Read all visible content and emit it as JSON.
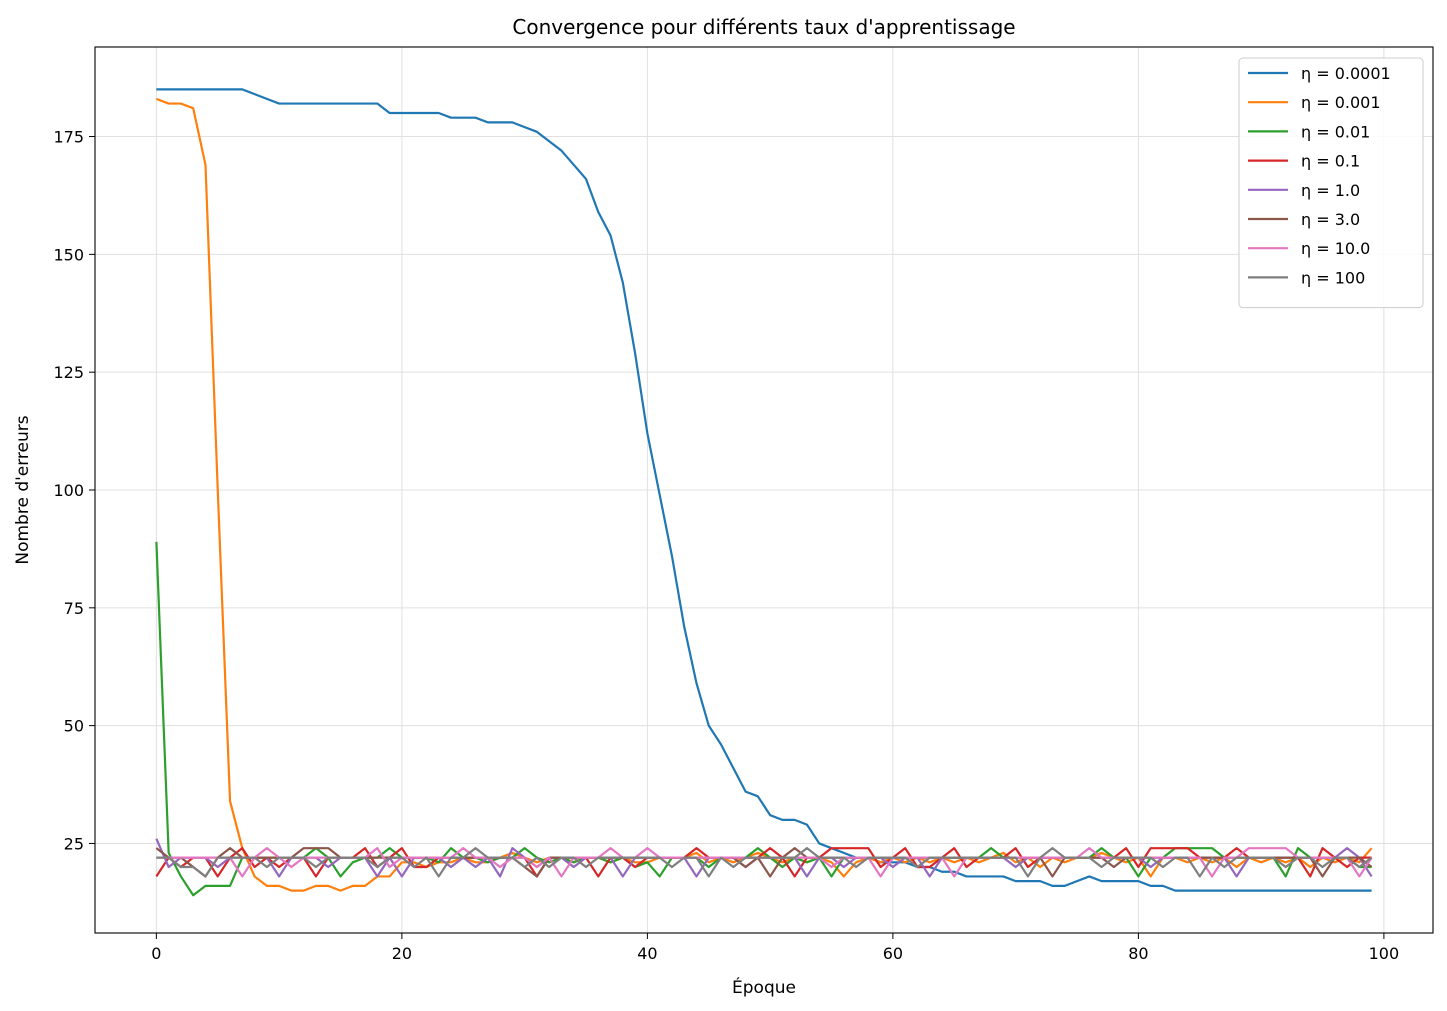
{
  "chart_data": {
    "type": "line",
    "title": "Convergence pour différents taux d'apprentissage",
    "xlabel": "Époque",
    "ylabel": "Nombre d'erreurs",
    "xlim": [
      -5,
      104
    ],
    "ylim": [
      6,
      194
    ],
    "xticks": [
      0,
      20,
      40,
      60,
      80,
      100
    ],
    "yticks": [
      25,
      50,
      75,
      100,
      125,
      150,
      175
    ],
    "grid": true,
    "legend_position": "top-right",
    "series": [
      {
        "name": "η = 0.0001",
        "color": "#1f77b4",
        "values": [
          185,
          185,
          185,
          185,
          185,
          185,
          185,
          185,
          184,
          183,
          182,
          182,
          182,
          182,
          182,
          182,
          182,
          182,
          182,
          180,
          180,
          180,
          180,
          180,
          179,
          179,
          179,
          178,
          178,
          178,
          177,
          176,
          174,
          172,
          169,
          166,
          159,
          154,
          144,
          129,
          112,
          99,
          86,
          71,
          59,
          50,
          46,
          41,
          36,
          35,
          31,
          30,
          30,
          29,
          25,
          24,
          23,
          22,
          22,
          21,
          21,
          21,
          20,
          20,
          19,
          19,
          18,
          18,
          18,
          18,
          17,
          17,
          17,
          16,
          16,
          17,
          18,
          17,
          17,
          17,
          17,
          16,
          16,
          15,
          15,
          15,
          15,
          15,
          15,
          15,
          15,
          15,
          15,
          15,
          15,
          15,
          15,
          15,
          15,
          15
        ]
      },
      {
        "name": "η = 0.001",
        "color": "#ff7f0e",
        "values": [
          183,
          182,
          182,
          181,
          169,
          100,
          34,
          24,
          18,
          16,
          16,
          15,
          15,
          16,
          16,
          15,
          16,
          16,
          18,
          18,
          21,
          21,
          20,
          21,
          21,
          22,
          21,
          21,
          22,
          23,
          22,
          21,
          22,
          22,
          21,
          22,
          22,
          21,
          22,
          21,
          21,
          22,
          22,
          22,
          23,
          21,
          22,
          21,
          22,
          23,
          22,
          21,
          22,
          21,
          22,
          21,
          18,
          21,
          22,
          21,
          22,
          21,
          22,
          21,
          22,
          21,
          22,
          21,
          22,
          23,
          21,
          22,
          20,
          22,
          21,
          22,
          22,
          23,
          22,
          21,
          22,
          18,
          22,
          22,
          21,
          22,
          21,
          22,
          20,
          22,
          21,
          22,
          21,
          22,
          20,
          22,
          21,
          22,
          21,
          24
        ]
      },
      {
        "name": "η = 0.01",
        "color": "#2ca02c",
        "values": [
          89,
          23,
          18,
          14,
          16,
          16,
          16,
          22,
          22,
          22,
          22,
          22,
          22,
          24,
          22,
          18,
          21,
          22,
          22,
          24,
          22,
          22,
          22,
          21,
          24,
          22,
          22,
          21,
          22,
          22,
          24,
          22,
          21,
          22,
          21,
          22,
          22,
          21,
          22,
          20,
          21,
          18,
          22,
          22,
          22,
          20,
          22,
          22,
          22,
          24,
          22,
          20,
          22,
          21,
          22,
          18,
          22,
          22,
          22,
          22,
          22,
          22,
          22,
          22,
          22,
          22,
          22,
          22,
          24,
          22,
          22,
          22,
          22,
          22,
          22,
          22,
          22,
          24,
          22,
          22,
          18,
          22,
          22,
          24,
          24,
          24,
          24,
          22,
          22,
          22,
          22,
          22,
          18,
          24,
          22,
          22,
          22,
          22,
          20,
          20
        ]
      },
      {
        "name": "η = 0.1",
        "color": "#d62728",
        "values": [
          18,
          22,
          20,
          22,
          22,
          18,
          22,
          24,
          20,
          22,
          20,
          22,
          22,
          18,
          22,
          22,
          22,
          24,
          20,
          22,
          24,
          20,
          20,
          22,
          22,
          22,
          22,
          22,
          22,
          22,
          22,
          18,
          22,
          22,
          22,
          22,
          18,
          22,
          22,
          20,
          22,
          22,
          22,
          22,
          24,
          22,
          22,
          22,
          22,
          22,
          24,
          22,
          18,
          22,
          22,
          24,
          24,
          24,
          24,
          20,
          22,
          24,
          20,
          20,
          22,
          24,
          20,
          22,
          22,
          22,
          24,
          20,
          22,
          22,
          22,
          22,
          22,
          22,
          22,
          24,
          20,
          24,
          24,
          24,
          24,
          22,
          22,
          22,
          24,
          22,
          22,
          22,
          22,
          22,
          18,
          24,
          22,
          20,
          22,
          22
        ]
      },
      {
        "name": "η = 1.0",
        "color": "#9467bd",
        "values": [
          26,
          20,
          22,
          22,
          22,
          20,
          22,
          22,
          22,
          22,
          18,
          22,
          22,
          22,
          20,
          22,
          22,
          22,
          18,
          22,
          18,
          22,
          22,
          22,
          20,
          22,
          20,
          22,
          18,
          24,
          22,
          20,
          22,
          22,
          20,
          22,
          22,
          22,
          18,
          22,
          22,
          22,
          22,
          22,
          18,
          22,
          22,
          22,
          20,
          22,
          22,
          22,
          22,
          18,
          22,
          22,
          20,
          22,
          22,
          22,
          20,
          22,
          22,
          18,
          22,
          22,
          22,
          22,
          22,
          22,
          20,
          22,
          22,
          22,
          22,
          22,
          22,
          22,
          22,
          22,
          22,
          20,
          22,
          22,
          22,
          22,
          22,
          22,
          18,
          22,
          22,
          22,
          22,
          22,
          22,
          22,
          22,
          24,
          22,
          18
        ]
      },
      {
        "name": "η = 3.0",
        "color": "#8c564b",
        "values": [
          24,
          22,
          22,
          20,
          18,
          22,
          24,
          22,
          22,
          22,
          22,
          22,
          24,
          24,
          24,
          22,
          22,
          22,
          22,
          22,
          22,
          22,
          22,
          22,
          22,
          22,
          22,
          22,
          22,
          22,
          20,
          18,
          22,
          22,
          22,
          22,
          22,
          22,
          22,
          22,
          22,
          22,
          22,
          22,
          22,
          22,
          22,
          22,
          20,
          22,
          18,
          22,
          24,
          22,
          22,
          22,
          22,
          22,
          22,
          22,
          22,
          22,
          22,
          22,
          22,
          22,
          22,
          22,
          22,
          22,
          22,
          22,
          22,
          18,
          22,
          22,
          22,
          22,
          20,
          22,
          22,
          22,
          22,
          22,
          22,
          22,
          22,
          22,
          22,
          22,
          22,
          22,
          22,
          22,
          22,
          18,
          22,
          22,
          22,
          20
        ]
      },
      {
        "name": "η = 10.0",
        "color": "#e377c2",
        "values": [
          22,
          22,
          22,
          22,
          22,
          22,
          22,
          18,
          22,
          24,
          22,
          20,
          22,
          22,
          22,
          22,
          22,
          22,
          24,
          20,
          22,
          22,
          22,
          22,
          22,
          24,
          22,
          22,
          20,
          22,
          22,
          20,
          22,
          18,
          22,
          22,
          22,
          24,
          22,
          22,
          24,
          22,
          22,
          22,
          22,
          22,
          22,
          22,
          22,
          22,
          22,
          22,
          22,
          22,
          22,
          20,
          22,
          22,
          22,
          18,
          22,
          22,
          22,
          22,
          22,
          18,
          22,
          22,
          22,
          22,
          22,
          22,
          22,
          22,
          22,
          22,
          24,
          22,
          22,
          22,
          22,
          22,
          22,
          22,
          22,
          22,
          18,
          22,
          22,
          24,
          24,
          24,
          24,
          22,
          22,
          22,
          22,
          22,
          18,
          22
        ]
      },
      {
        "name": "η = 100",
        "color": "#7f7f7f",
        "values": [
          22,
          22,
          20,
          20,
          18,
          22,
          22,
          22,
          22,
          20,
          22,
          22,
          22,
          20,
          22,
          22,
          22,
          22,
          20,
          22,
          22,
          20,
          22,
          18,
          22,
          22,
          24,
          22,
          22,
          22,
          20,
          22,
          20,
          22,
          22,
          20,
          22,
          22,
          22,
          22,
          22,
          22,
          20,
          22,
          22,
          18,
          22,
          20,
          22,
          22,
          22,
          22,
          22,
          24,
          22,
          22,
          22,
          20,
          22,
          22,
          22,
          22,
          20,
          22,
          22,
          22,
          22,
          22,
          22,
          22,
          22,
          18,
          22,
          24,
          22,
          22,
          22,
          20,
          22,
          22,
          22,
          22,
          20,
          22,
          22,
          18,
          22,
          20,
          22,
          22,
          22,
          22,
          20,
          22,
          22,
          20,
          22,
          22,
          20,
          22
        ]
      }
    ]
  }
}
